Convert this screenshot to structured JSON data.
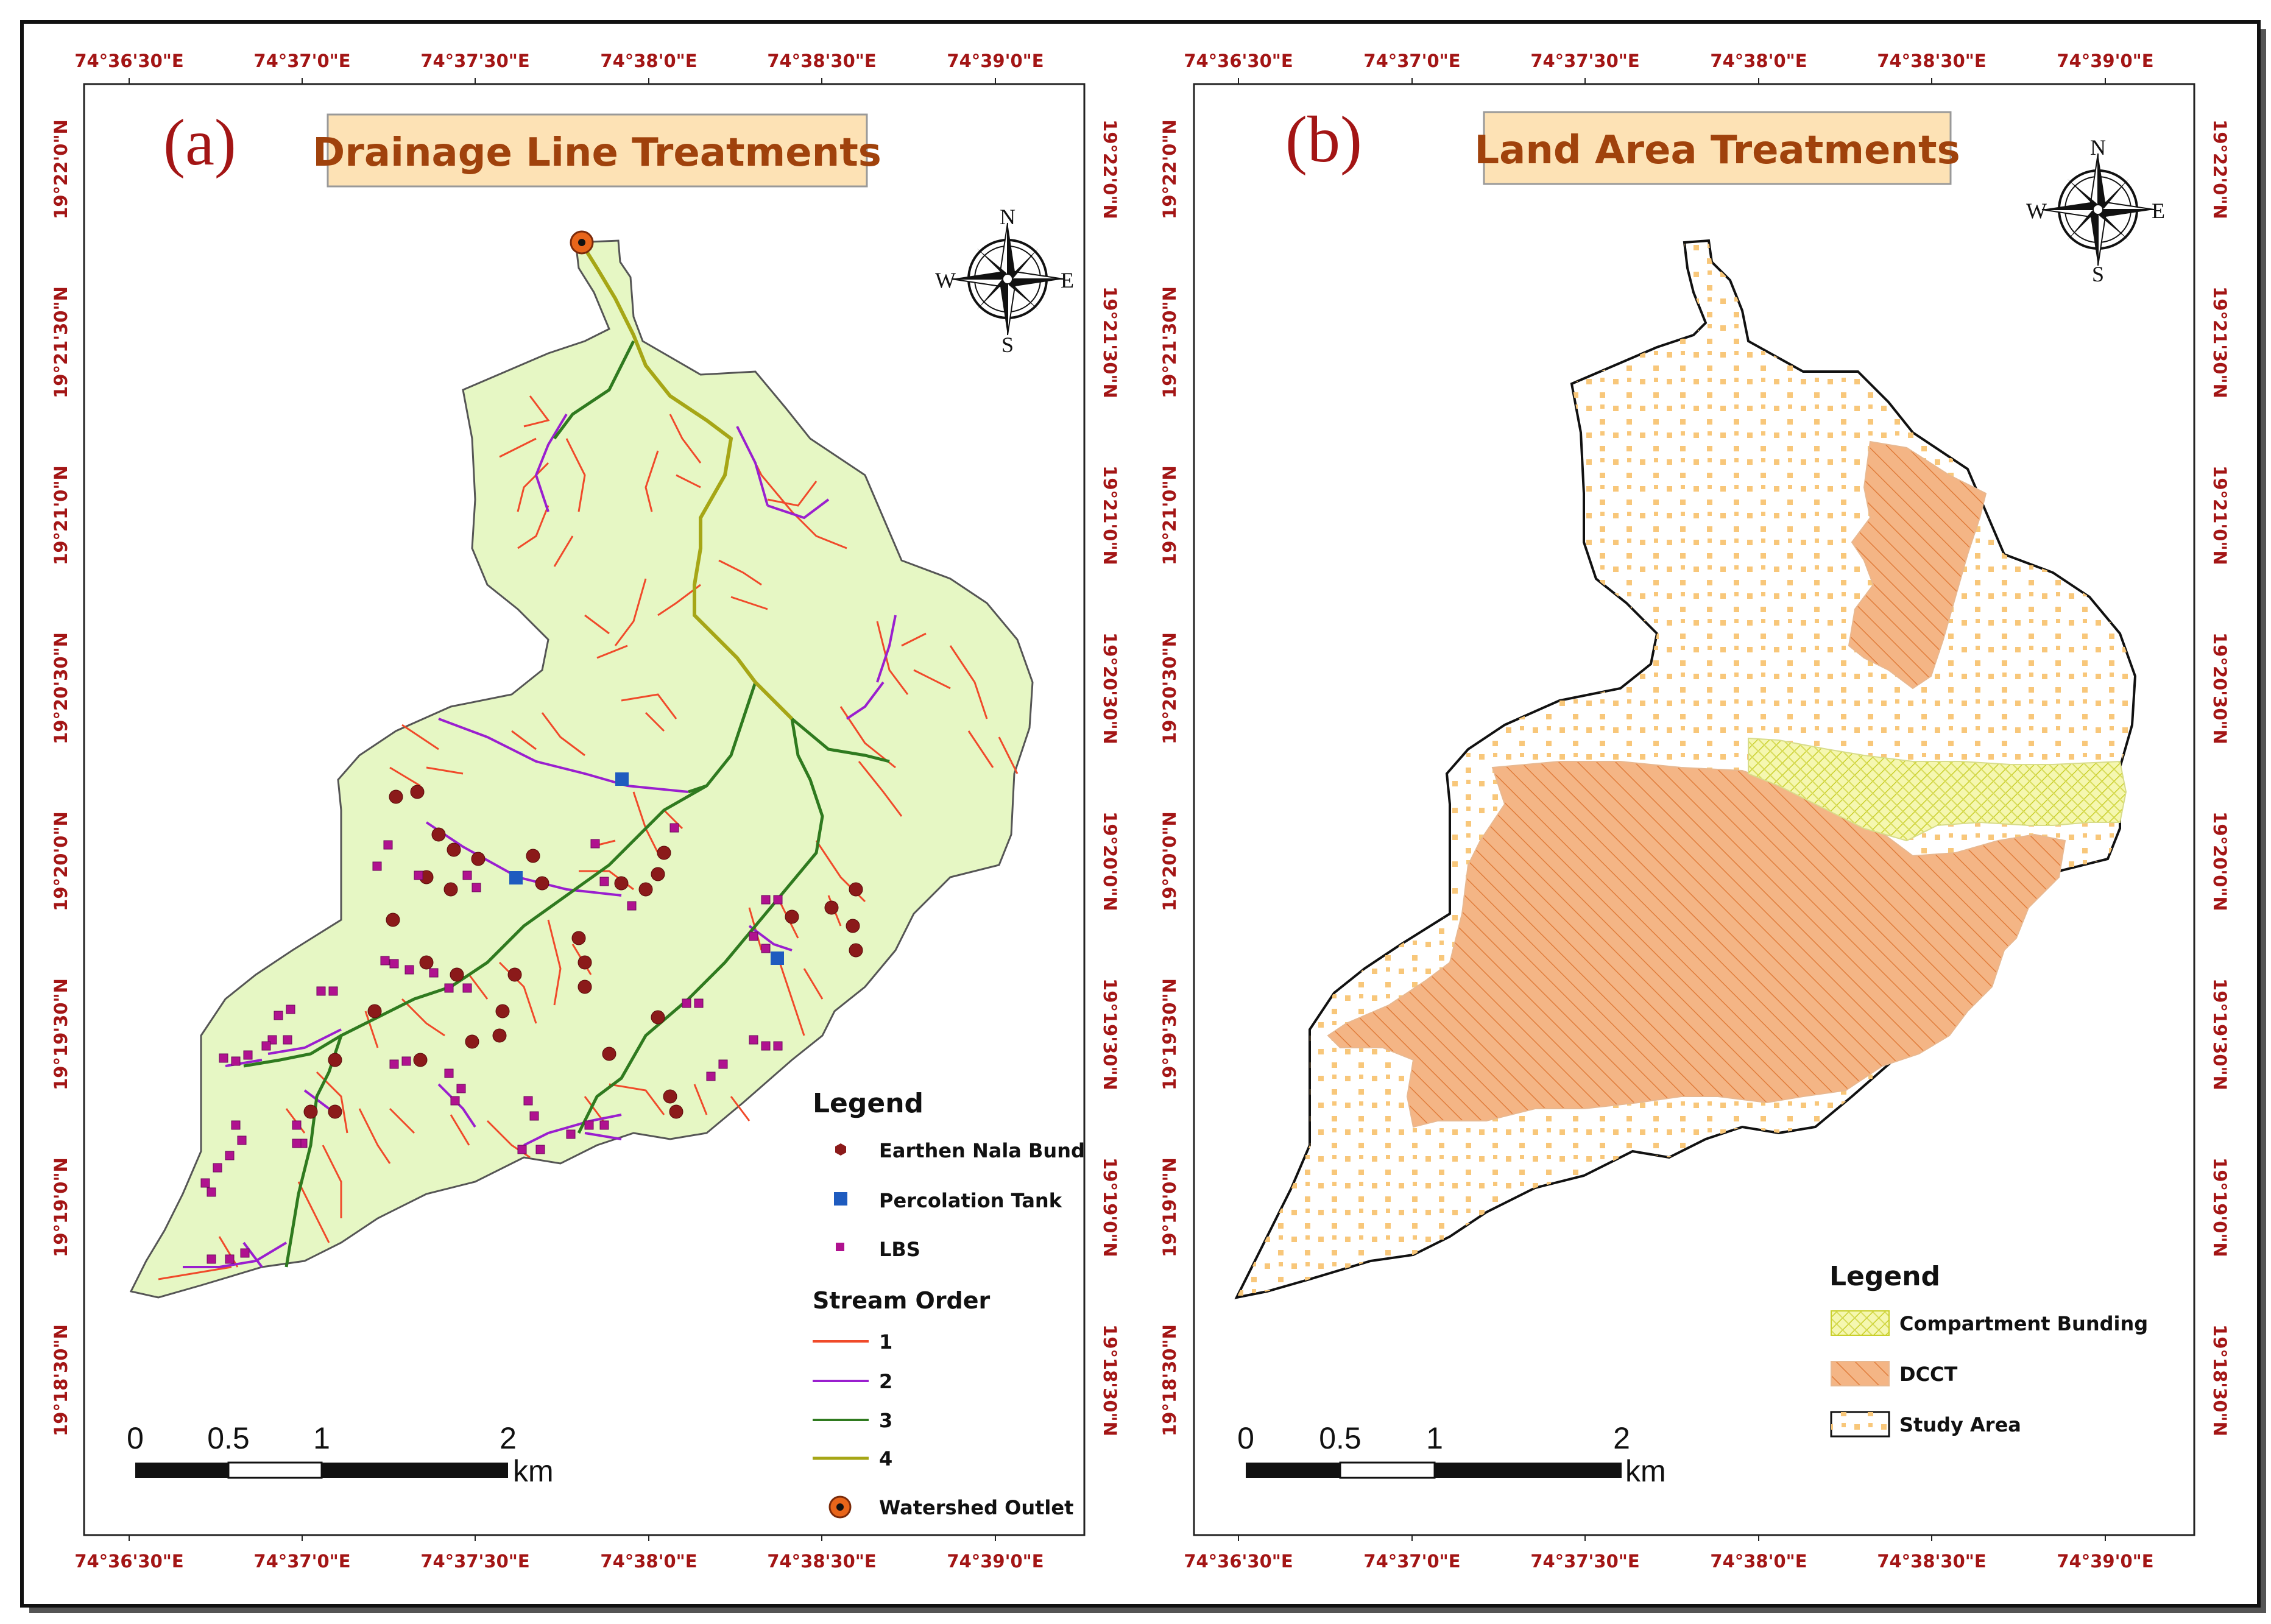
{
  "panel_a": {
    "letter": "(a)",
    "title": "Drainage Line Treatments",
    "legend": {
      "title": "Legend",
      "earthen_nala_bund": "Earthen Nala Bund",
      "percolation_tank": "Percolation Tank",
      "lbs": "LBS",
      "stream_order_title": "Stream Order",
      "stream_orders": [
        "1",
        "2",
        "3",
        "4"
      ],
      "watershed_outlet": "Watershed Outlet"
    }
  },
  "panel_b": {
    "letter": "(b)",
    "title": "Land Area Treatments",
    "legend": {
      "title": "Legend",
      "compartment_bunding": "Compartment Bunding",
      "dcct": "DCCT",
      "study_area": "Study Area"
    }
  },
  "longitude_labels": [
    "74°36'30\"E",
    "74°37'0\"E",
    "74°37'30\"E",
    "74°38'0\"E",
    "74°38'30\"E",
    "74°39'0\"E"
  ],
  "latitude_labels": [
    "19°22'0\"N",
    "19°21'30\"N",
    "19°21'0\"N",
    "19°20'30\"N",
    "19°20'0\"N",
    "19°19'30\"N",
    "19°19'0\"N",
    "19°18'30\"N"
  ],
  "scale_bar": {
    "ticks": [
      "0",
      "0.5",
      "1",
      "2"
    ],
    "unit": "km"
  },
  "compass": {
    "n": "N",
    "s": "S",
    "e": "E",
    "w": "W"
  },
  "colors": {
    "coordinate_text": "#a31515",
    "title_box_fill": "#fde2b5",
    "title_text": "#a0420c",
    "watershed_fill_a": "#e6f7c4",
    "earthen_nala_bund": "#8b1a1a",
    "percolation_tank": "#1e5bbf",
    "lbs": "#b0128f",
    "stream_order_1": "#f04a2a",
    "stream_order_2": "#9a1fcf",
    "stream_order_3": "#2f7a1f",
    "stream_order_4": "#a6a616",
    "watershed_outlet": "#e8651a",
    "compartment_bunding": "#eef27a",
    "dcct": "#f2a86a",
    "study_area_dots": "#f8c77a"
  }
}
